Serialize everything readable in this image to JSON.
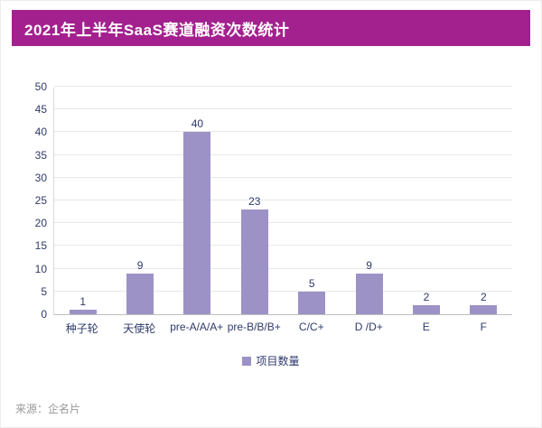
{
  "header": {
    "title": "2021年上半年SaaS赛道融资次数统计"
  },
  "chart_data": {
    "type": "bar",
    "title": "2021年上半年SaaS赛道融资次数统计",
    "categories": [
      "种子轮",
      "天使轮",
      "pre-A/A/A+",
      "pre-B/B/B+",
      "C/C+",
      "D /D+",
      "E",
      "F"
    ],
    "values": [
      1,
      9,
      40,
      23,
      5,
      9,
      2,
      2
    ],
    "xlabel": "",
    "ylabel": "",
    "ylim": [
      0,
      50
    ],
    "ytick_step": 5,
    "grid": true,
    "legend": [
      "项目数量"
    ],
    "legend_position": "bottom"
  },
  "legend": {
    "label": "项目数量"
  },
  "footer": {
    "source": "来源：企名片"
  },
  "colors": {
    "banner": "#A3218E",
    "bar": "#9D92C6",
    "axis_text": "#2E3A6B",
    "grid": "#E8E8E8",
    "footer_text": "#999999"
  }
}
